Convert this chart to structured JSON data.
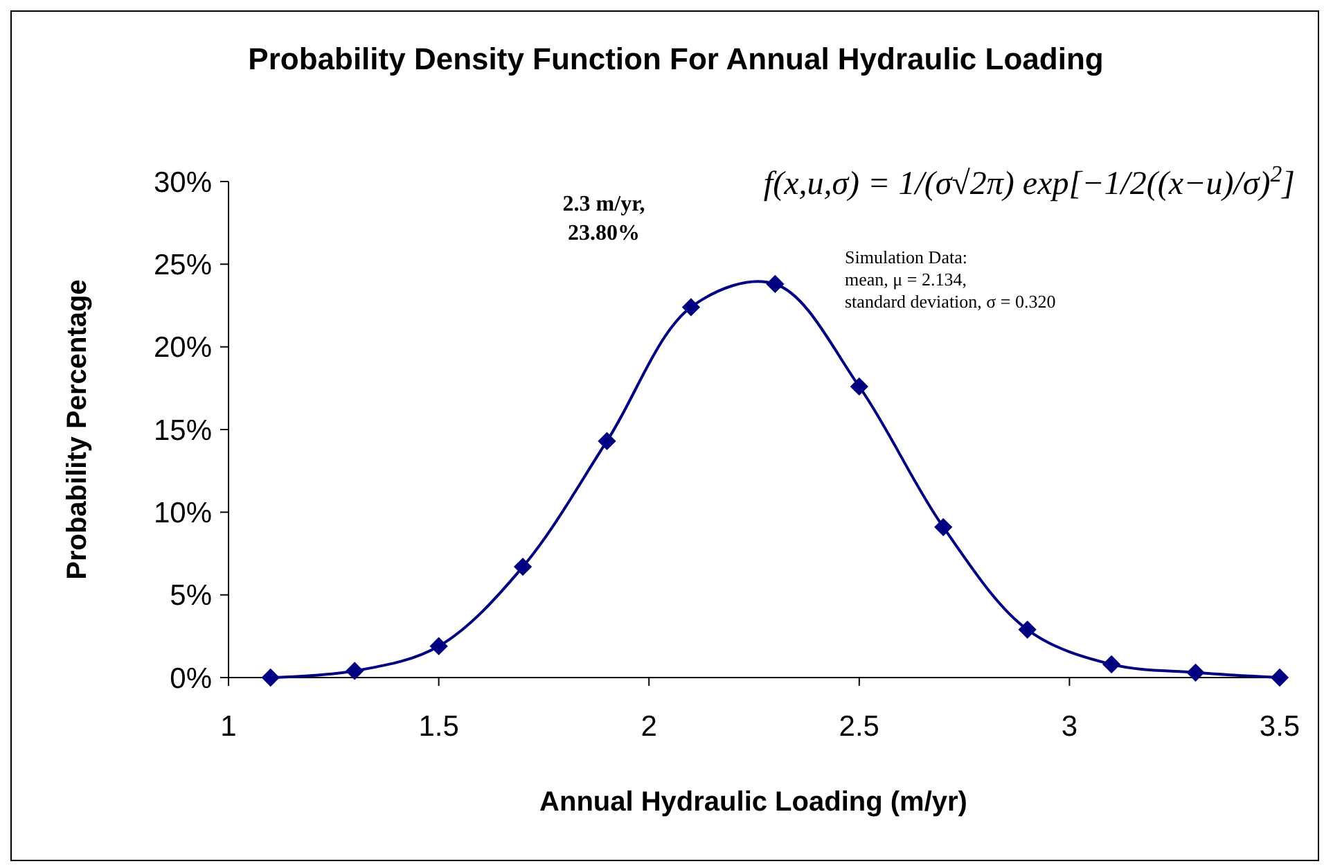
{
  "chart_data": {
    "type": "line",
    "title": "Probability Density Function For Annual Hydraulic Loading",
    "xlabel": "Annual Hydraulic Loading (m/yr)",
    "ylabel": "Probability Percentage",
    "x": [
      1.1,
      1.3,
      1.5,
      1.7,
      1.9,
      2.1,
      2.3,
      2.5,
      2.7,
      2.9,
      3.1,
      3.3,
      3.5
    ],
    "series": [
      {
        "color": "#000080",
        "values": [
          0,
          0.4,
          1.9,
          6.7,
          14.3,
          22.4,
          23.8,
          17.6,
          9.1,
          2.9,
          0.8,
          0.3,
          0
        ]
      }
    ],
    "xlim": [
      1,
      3.5
    ],
    "xticks": [
      1,
      1.5,
      2,
      2.5,
      3,
      3.5
    ],
    "ylim": [
      0,
      30
    ],
    "yticks": [
      {
        "value": 0,
        "label": "0%"
      },
      {
        "value": 5,
        "label": "5%"
      },
      {
        "value": 10,
        "label": "10%"
      },
      {
        "value": 15,
        "label": "15%"
      },
      {
        "value": 20,
        "label": "20%"
      },
      {
        "value": 25,
        "label": "25%"
      },
      {
        "value": 30,
        "label": "30%"
      }
    ],
    "marker": "diamond",
    "line_style": "solid",
    "grid": false,
    "annotations": [
      "2.3 m/yr,\n23.80%",
      "f(x,u,σ) = 1/(σ√2π) exp[−1/2((x−u)/σ)$^{2}$]",
      "Simulation Data:\nmean, μ = 2.134,\nstandard deviation, σ = 0.320"
    ]
  }
}
